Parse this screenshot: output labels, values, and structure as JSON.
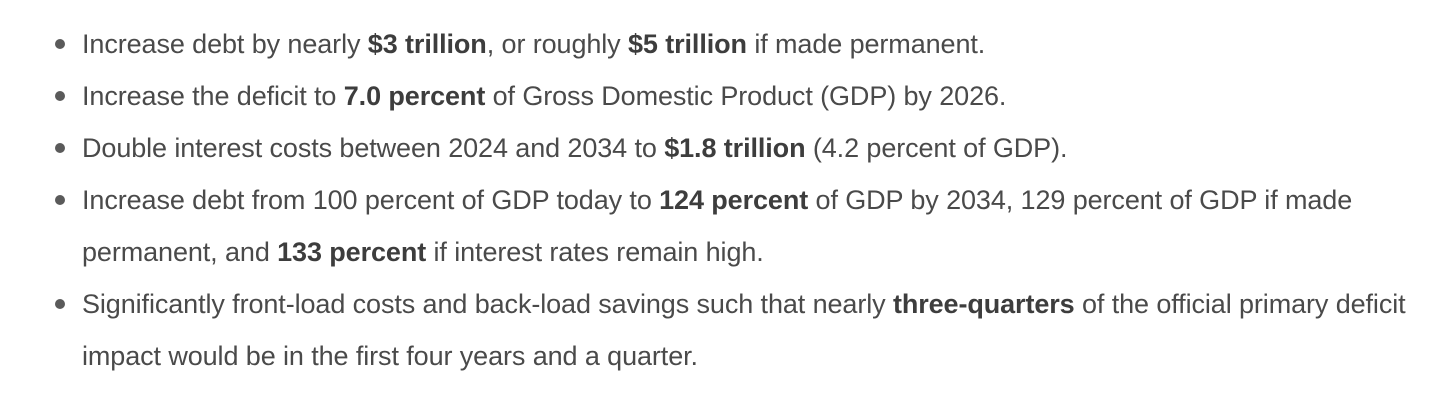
{
  "bullets": [
    {
      "segments": [
        {
          "text": "Increase debt by nearly ",
          "bold": false
        },
        {
          "text": "$3 trillion",
          "bold": true
        },
        {
          "text": ", or roughly ",
          "bold": false
        },
        {
          "text": "$5 trillion",
          "bold": true
        },
        {
          "text": " if made permanent.",
          "bold": false
        }
      ]
    },
    {
      "segments": [
        {
          "text": "Increase the deficit to ",
          "bold": false
        },
        {
          "text": "7.0 percent",
          "bold": true
        },
        {
          "text": " of Gross Domestic Product (GDP) by 2026.",
          "bold": false
        }
      ]
    },
    {
      "segments": [
        {
          "text": "Double interest costs between 2024 and 2034 to ",
          "bold": false
        },
        {
          "text": "$1.8 trillion",
          "bold": true
        },
        {
          "text": " (4.2 percent of GDP).",
          "bold": false
        }
      ]
    },
    {
      "segments": [
        {
          "text": "Increase debt from 100 percent of GDP today to ",
          "bold": false
        },
        {
          "text": "124 percent",
          "bold": true
        },
        {
          "text": " of GDP by 2034, 129 percent of GDP if made permanent, and ",
          "bold": false
        },
        {
          "text": "133 percent",
          "bold": true
        },
        {
          "text": " if interest rates remain high.",
          "bold": false
        }
      ]
    },
    {
      "segments": [
        {
          "text": "Significantly front-load costs and back-load savings such that nearly ",
          "bold": false
        },
        {
          "text": "three-quarters",
          "bold": true
        },
        {
          "text": " of the official primary deficit impact would be in the first four years and a quarter.",
          "bold": false
        }
      ]
    }
  ]
}
